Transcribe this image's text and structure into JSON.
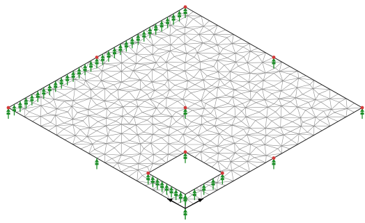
{
  "viewport": {
    "background_color": "#ffffff"
  },
  "model": {
    "plate_outline_color": "#1e1e1e",
    "mesh_line_color": "#8a8a8a",
    "opening_count": 1,
    "node_marker_color": "#d33a3a",
    "support_color": "#1f8f2a",
    "support_count_total": 54,
    "column_supports": 9
  },
  "icons": {
    "axis_triad": "coordinate-axes-icon"
  }
}
